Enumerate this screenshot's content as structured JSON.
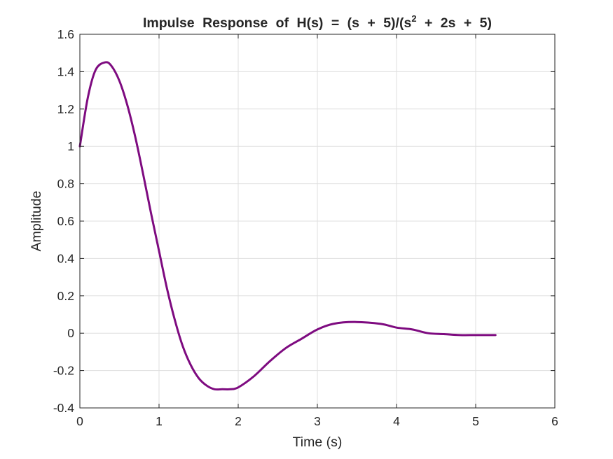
{
  "chart_data": {
    "type": "line",
    "title": "Impulse Response of H(s) = (s + 5)/(s",
    "title_superscript": "2",
    "title_suffix": " + 2s + 5)",
    "xlabel": "Time (s)",
    "ylabel": "Amplitude",
    "xlim": [
      0,
      6
    ],
    "ylim": [
      -0.4,
      1.6
    ],
    "xticks": [
      "0",
      "1",
      "2",
      "3",
      "4",
      "5",
      "6"
    ],
    "yticks": [
      "-0.4",
      "-0.2",
      "0",
      "0.2",
      "0.4",
      "0.6",
      "0.8",
      "1",
      "1.2",
      "1.4",
      "1.6"
    ],
    "grid": true,
    "line_color": "#7e0b80",
    "series": [
      {
        "x": [
          0,
          0.1,
          0.2,
          0.32,
          0.4,
          0.5,
          0.6,
          0.7,
          0.8,
          0.9,
          1.0,
          1.1,
          1.2,
          1.3,
          1.4,
          1.5,
          1.6,
          1.7,
          1.8,
          1.9,
          2.0,
          2.2,
          2.4,
          2.6,
          2.8,
          3.0,
          3.2,
          3.47,
          3.8,
          4.0,
          4.2,
          4.4,
          4.6,
          4.8,
          5.0,
          5.25
        ],
        "y": [
          1.0,
          1.26,
          1.41,
          1.45,
          1.43,
          1.35,
          1.22,
          1.05,
          0.85,
          0.64,
          0.44,
          0.24,
          0.07,
          -0.07,
          -0.17,
          -0.24,
          -0.28,
          -0.3,
          -0.3,
          -0.3,
          -0.29,
          -0.23,
          -0.15,
          -0.08,
          -0.03,
          0.02,
          0.05,
          0.06,
          0.05,
          0.03,
          0.02,
          0.0,
          -0.005,
          -0.01,
          -0.01,
          -0.01
        ]
      }
    ]
  }
}
